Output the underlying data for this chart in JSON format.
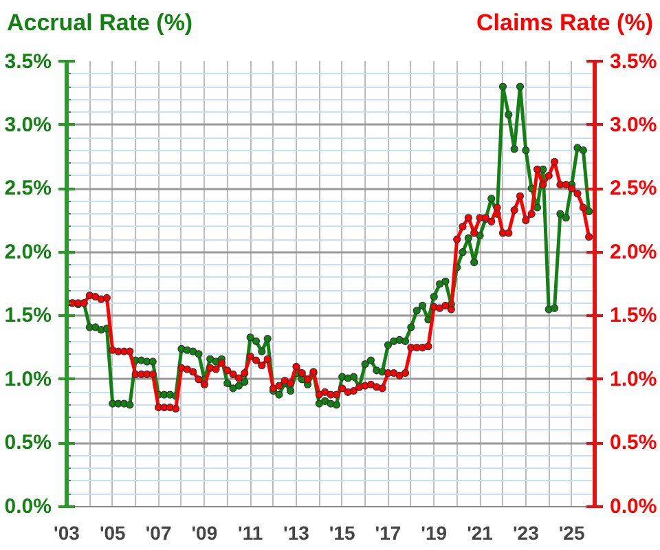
{
  "chart_data": {
    "type": "line",
    "ylabel": "Accrual Rate (%)",
    "y2label": "Claims Rate (%)",
    "x": [
      2003,
      2003.25,
      2003.5,
      2003.75,
      2004,
      2004.25,
      2004.5,
      2004.75,
      2005,
      2005.25,
      2005.5,
      2005.75,
      2006,
      2006.25,
      2006.5,
      2006.75,
      2007,
      2007.25,
      2007.5,
      2007.75,
      2008,
      2008.25,
      2008.5,
      2008.75,
      2009,
      2009.25,
      2009.5,
      2009.75,
      2010,
      2010.25,
      2010.5,
      2010.75,
      2011,
      2011.25,
      2011.5,
      2011.75,
      2012,
      2012.25,
      2012.5,
      2012.75,
      2013,
      2013.25,
      2013.5,
      2013.75,
      2014,
      2014.25,
      2014.5,
      2014.75,
      2015,
      2015.25,
      2015.5,
      2015.75,
      2016,
      2016.25,
      2016.5,
      2016.75,
      2017,
      2017.25,
      2017.5,
      2017.75,
      2018,
      2018.25,
      2018.5,
      2018.75,
      2019,
      2019.25,
      2019.5,
      2019.75,
      2020,
      2020.25,
      2020.5,
      2020.75,
      2021,
      2021.25,
      2021.5,
      2021.75,
      2022,
      2022.25,
      2022.5,
      2022.75,
      2023,
      2023.25,
      2023.5,
      2023.75,
      2024,
      2024.25,
      2024.5,
      2024.75,
      2025,
      2025.25,
      2025.5,
      2025.75
    ],
    "series": [
      {
        "color": "#138013",
        "values": [
          1.6,
          1.6,
          1.59,
          1.6,
          1.41,
          1.41,
          1.39,
          1.4,
          0.81,
          0.81,
          0.81,
          0.8,
          1.15,
          1.15,
          1.14,
          1.14,
          0.88,
          0.88,
          0.88,
          0.87,
          1.24,
          1.23,
          1.22,
          1.2,
          1.0,
          1.16,
          1.14,
          1.16,
          0.97,
          0.93,
          0.95,
          0.98,
          1.33,
          1.3,
          1.22,
          1.32,
          0.91,
          0.88,
          0.97,
          0.91,
          1.05,
          1.0,
          0.96,
          1.05,
          0.81,
          0.83,
          0.81,
          0.8,
          1.02,
          1.01,
          1.02,
          0.94,
          1.12,
          1.15,
          1.07,
          1.06,
          1.27,
          1.3,
          1.31,
          1.3,
          1.41,
          1.54,
          1.58,
          1.47,
          1.65,
          1.75,
          1.77,
          1.59,
          1.88,
          2.0,
          2.11,
          1.92,
          2.13,
          2.26,
          2.42,
          2.3,
          3.3,
          3.08,
          2.81,
          3.3,
          2.8,
          2.5,
          2.35,
          2.65,
          1.55,
          1.56,
          2.3,
          2.27,
          2.53,
          2.82,
          2.8,
          2.32
        ]
      },
      {
        "color": "#ff0000",
        "axis": "y2",
        "values": [
          1.6,
          1.6,
          1.6,
          1.6,
          1.66,
          1.65,
          1.63,
          1.64,
          1.23,
          1.22,
          1.22,
          1.22,
          1.04,
          1.04,
          1.04,
          1.04,
          0.78,
          0.78,
          0.78,
          0.77,
          1.09,
          1.08,
          1.06,
          1.0,
          0.96,
          1.09,
          1.08,
          1.13,
          1.07,
          1.04,
          1.01,
          1.05,
          1.18,
          1.15,
          1.11,
          1.16,
          0.93,
          0.95,
          0.99,
          0.97,
          1.1,
          1.05,
          1.0,
          1.06,
          0.88,
          0.9,
          0.88,
          0.88,
          0.93,
          0.9,
          0.91,
          0.94,
          0.95,
          0.96,
          0.94,
          0.93,
          1.05,
          1.05,
          1.03,
          1.05,
          1.25,
          1.25,
          1.25,
          1.26,
          1.57,
          1.56,
          1.58,
          1.55,
          2.1,
          2.2,
          2.27,
          2.15,
          2.27,
          2.27,
          2.24,
          2.35,
          2.15,
          2.15,
          2.33,
          2.44,
          2.25,
          2.3,
          2.65,
          2.53,
          2.6,
          2.71,
          2.53,
          2.53,
          2.5,
          2.46,
          2.35,
          2.12
        ]
      }
    ],
    "xlim": [
      2003,
      2026
    ],
    "xticks": [
      {
        "value": 2003,
        "label": "'03"
      },
      {
        "value": 2004,
        "label": null
      },
      {
        "value": 2005,
        "label": "'05"
      },
      {
        "value": 2006,
        "label": null
      },
      {
        "value": 2007,
        "label": "'07"
      },
      {
        "value": 2008,
        "label": null
      },
      {
        "value": 2009,
        "label": "'09"
      },
      {
        "value": 2010,
        "label": null
      },
      {
        "value": 2011,
        "label": "'11"
      },
      {
        "value": 2012,
        "label": null
      },
      {
        "value": 2013,
        "label": "'13"
      },
      {
        "value": 2014,
        "label": null
      },
      {
        "value": 2015,
        "label": "'15"
      },
      {
        "value": 2016,
        "label": null
      },
      {
        "value": 2017,
        "label": "'17"
      },
      {
        "value": 2018,
        "label": null
      },
      {
        "value": 2019,
        "label": "'19"
      },
      {
        "value": 2020,
        "label": null
      },
      {
        "value": 2021,
        "label": "'21"
      },
      {
        "value": 2022,
        "label": null
      },
      {
        "value": 2023,
        "label": "'23"
      },
      {
        "value": 2024,
        "label": null
      },
      {
        "value": 2025,
        "label": "'25"
      },
      {
        "value": 2026,
        "label": null
      }
    ],
    "ylim": [
      0,
      3.5
    ],
    "yticks": [
      {
        "value": 0,
        "label": "0.0%"
      },
      {
        "value": 0.1,
        "label": null
      },
      {
        "value": 0.2,
        "label": null
      },
      {
        "value": 0.3,
        "label": null
      },
      {
        "value": 0.4,
        "label": null
      },
      {
        "value": 0.5,
        "label": "0.5%"
      },
      {
        "value": 0.6,
        "label": null
      },
      {
        "value": 0.7,
        "label": null
      },
      {
        "value": 0.8,
        "label": null
      },
      {
        "value": 0.9,
        "label": null
      },
      {
        "value": 1,
        "label": "1.0%"
      },
      {
        "value": 1.1,
        "label": null
      },
      {
        "value": 1.2,
        "label": null
      },
      {
        "value": 1.3,
        "label": null
      },
      {
        "value": 1.4,
        "label": null
      },
      {
        "value": 1.5,
        "label": "1.5%"
      },
      {
        "value": 1.6,
        "label": null
      },
      {
        "value": 1.7,
        "label": null
      },
      {
        "value": 1.8,
        "label": null
      },
      {
        "value": 1.9,
        "label": null
      },
      {
        "value": 2,
        "label": "2.0%"
      },
      {
        "value": 2.1,
        "label": null
      },
      {
        "value": 2.2,
        "label": null
      },
      {
        "value": 2.3,
        "label": null
      },
      {
        "value": 2.4,
        "label": null
      },
      {
        "value": 2.5,
        "label": "2.5%"
      },
      {
        "value": 2.6,
        "label": null
      },
      {
        "value": 2.7,
        "label": null
      },
      {
        "value": 2.8,
        "label": null
      },
      {
        "value": 2.9,
        "label": null
      },
      {
        "value": 3,
        "label": "3.0%"
      },
      {
        "value": 3.1,
        "label": null
      },
      {
        "value": 3.2,
        "label": null
      },
      {
        "value": 3.3,
        "label": null
      },
      {
        "value": 3.4,
        "label": null
      },
      {
        "value": 3.5,
        "label": "3.5%"
      }
    ],
    "y2lim": [
      0,
      3.5
    ],
    "y2ticks": [
      {
        "value": 0,
        "label": "0.0%"
      },
      {
        "value": 0.5,
        "label": "0.5%"
      },
      {
        "value": 1,
        "label": "1.0%"
      },
      {
        "value": 1.5,
        "label": "1.5%"
      },
      {
        "value": 2,
        "label": "2.0%"
      },
      {
        "value": 2.5,
        "label": "2.5%"
      },
      {
        "value": 3,
        "label": "3.0%"
      },
      {
        "value": 3.5,
        "label": "3.5%"
      }
    ],
    "grid": true,
    "marker": "circle",
    "line_style": "solid"
  }
}
